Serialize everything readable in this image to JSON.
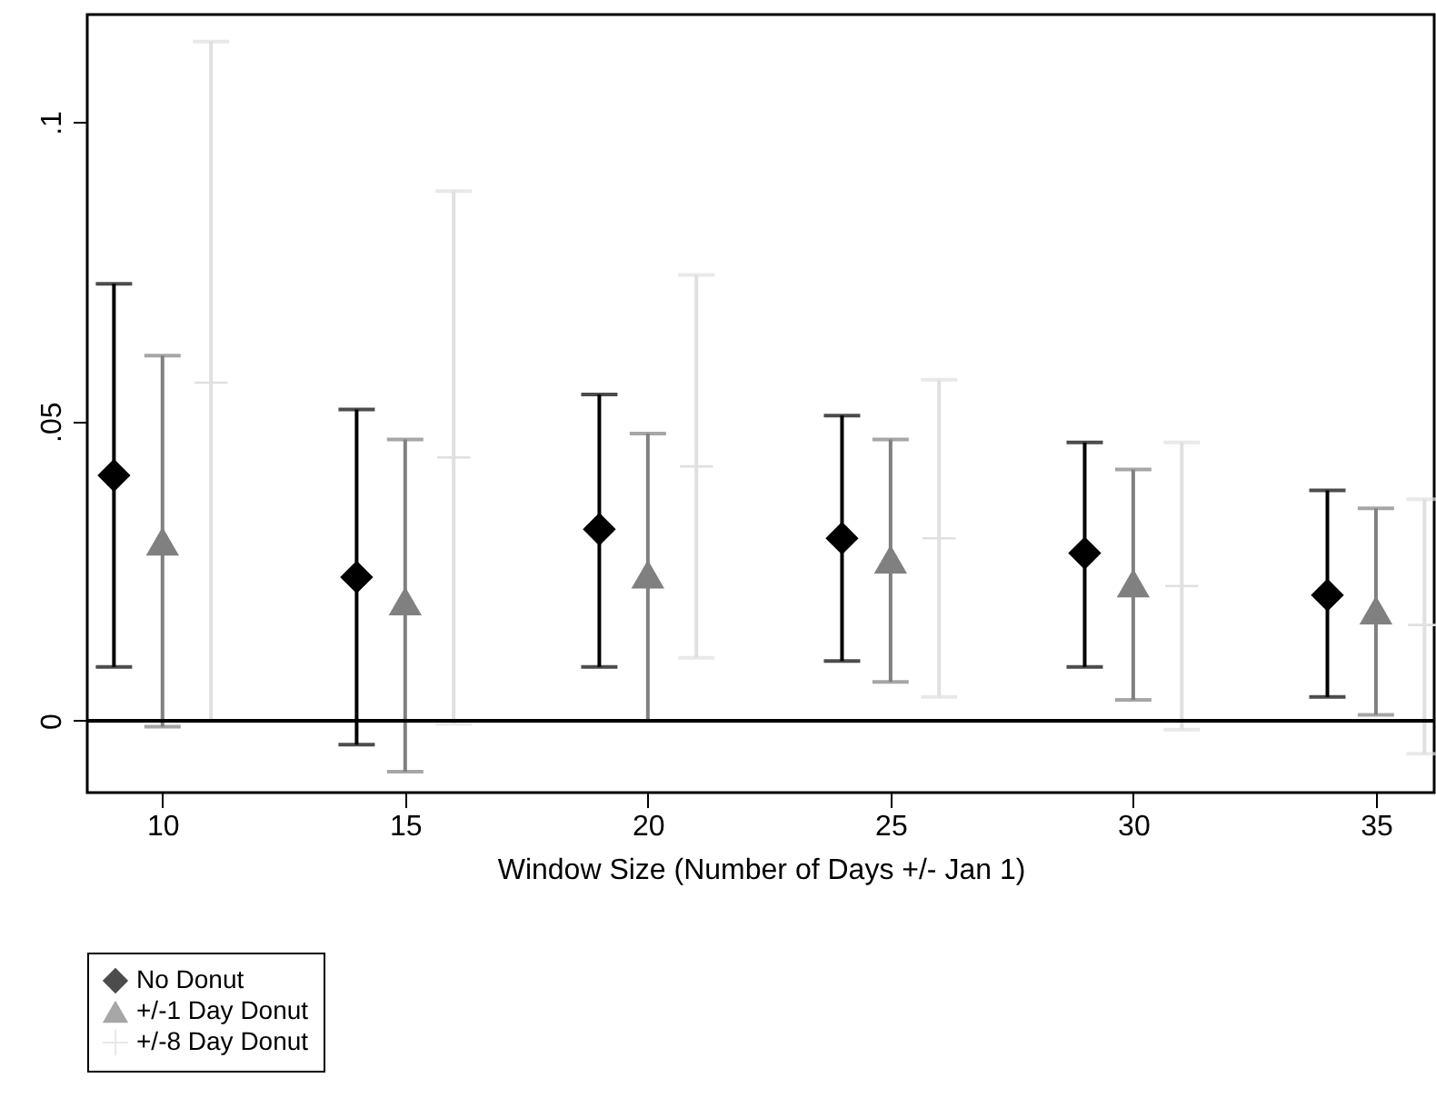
{
  "chart_data": {
    "type": "scatter",
    "xlabel": "Window Size (Number of Days +/- Jan 1)",
    "xlim": [
      8.45,
      36.2
    ],
    "xticks": [
      10,
      15,
      20,
      25,
      30,
      35
    ],
    "ylim": [
      -0.012,
      0.118
    ],
    "yticks": [
      {
        "value": 0,
        "label": "0"
      },
      {
        "value": 0.05,
        "label": ".05"
      },
      {
        "value": 0.1,
        "label": ".1"
      }
    ],
    "grid": false,
    "legend": "bottom",
    "ref_lines": [
      {
        "axis": "y",
        "value": 0,
        "color": "#000000"
      }
    ],
    "series": [
      {
        "name": "No Donut",
        "color": "#000000",
        "marker": "diamond",
        "x": [
          9,
          14,
          19,
          24,
          29,
          34
        ],
        "values": [
          0.041,
          0.024,
          0.032,
          0.0305,
          0.028,
          0.021
        ],
        "errors": [
          [
            0.009,
            0.073
          ],
          [
            -0.004,
            0.052
          ],
          [
            0.009,
            0.0545
          ],
          [
            0.01,
            0.051
          ],
          [
            0.009,
            0.0465
          ],
          [
            0.004,
            0.0385
          ]
        ]
      },
      {
        "name": "+/-1 Day Donut",
        "color": "#808080",
        "marker": "triangle",
        "x": [
          10,
          15,
          20,
          25,
          30,
          35
        ],
        "values": [
          0.03,
          0.02,
          0.0245,
          0.027,
          0.023,
          0.0185
        ],
        "errors": [
          [
            -0.001,
            0.061
          ],
          [
            -0.0085,
            0.047
          ],
          [
            0,
            0.048
          ],
          [
            0.0065,
            0.047
          ],
          [
            0.0035,
            0.042
          ],
          [
            0.001,
            0.0355
          ]
        ]
      },
      {
        "name": "+/-8 Day Donut",
        "color": "#e0e0e0",
        "marker": "cross",
        "x": [
          11,
          16,
          21,
          26,
          31,
          36
        ],
        "values": [
          0.0565,
          0.044,
          0.0425,
          0.0305,
          0.0225,
          0.016
        ],
        "errors": [
          [
            0,
            0.1135
          ],
          [
            -0.0005,
            0.0885
          ],
          [
            0.0105,
            0.0745
          ],
          [
            0.004,
            0.057
          ],
          [
            -0.0015,
            0.0465
          ],
          [
            -0.0055,
            0.037
          ]
        ]
      }
    ]
  }
}
